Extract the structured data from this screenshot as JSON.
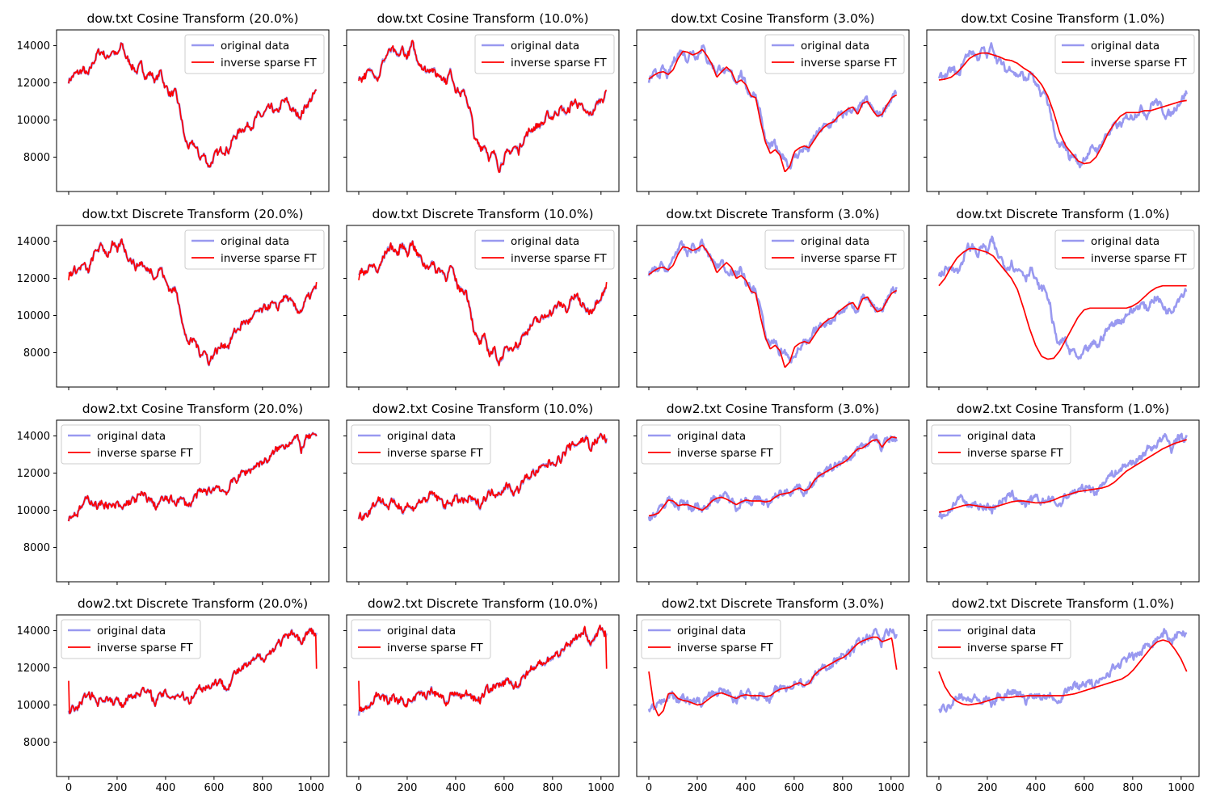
{
  "figure": {
    "colors": {
      "original": "#9999f0",
      "inverse": "#ff0000"
    },
    "x_ticks": [
      0,
      200,
      400,
      600,
      800,
      1000
    ],
    "y_ticks": [
      8000,
      10000,
      12000,
      14000
    ]
  },
  "chart_data": [
    {
      "type": "line",
      "title": "dow.txt Cosine Transform (20.0%)",
      "dataset": "dow.txt",
      "transform": "cosine",
      "keep_fraction": 0.2,
      "xlim": [
        -50,
        1074
      ],
      "ylim": [
        6150,
        14850
      ],
      "legend": "upper right",
      "series": [
        {
          "name": "original data"
        },
        {
          "name": "inverse sparse FT"
        }
      ]
    },
    {
      "type": "line",
      "title": "dow.txt Cosine Transform (10.0%)",
      "dataset": "dow.txt",
      "transform": "cosine",
      "keep_fraction": 0.1,
      "xlim": [
        -50,
        1074
      ],
      "ylim": [
        6150,
        14850
      ],
      "legend": "upper right",
      "series": [
        {
          "name": "original data"
        },
        {
          "name": "inverse sparse FT"
        }
      ]
    },
    {
      "type": "line",
      "title": "dow.txt Cosine Transform (3.0%)",
      "dataset": "dow.txt",
      "transform": "cosine",
      "keep_fraction": 0.03,
      "xlim": [
        -50,
        1074
      ],
      "ylim": [
        6150,
        14850
      ],
      "legend": "upper right",
      "series": [
        {
          "name": "original data"
        },
        {
          "name": "inverse sparse FT"
        }
      ]
    },
    {
      "type": "line",
      "title": "dow.txt Cosine Transform (1.0%)",
      "dataset": "dow.txt",
      "transform": "cosine",
      "keep_fraction": 0.01,
      "xlim": [
        -50,
        1074
      ],
      "ylim": [
        6150,
        14850
      ],
      "legend": "upper right",
      "series": [
        {
          "name": "original data"
        },
        {
          "name": "inverse sparse FT"
        }
      ]
    },
    {
      "type": "line",
      "title": "dow.txt Discrete Transform (20.0%)",
      "dataset": "dow.txt",
      "transform": "discrete",
      "keep_fraction": 0.2,
      "xlim": [
        -50,
        1074
      ],
      "ylim": [
        6150,
        14850
      ],
      "legend": "upper right",
      "series": [
        {
          "name": "original data"
        },
        {
          "name": "inverse sparse FT"
        }
      ]
    },
    {
      "type": "line",
      "title": "dow.txt Discrete Transform (10.0%)",
      "dataset": "dow.txt",
      "transform": "discrete",
      "keep_fraction": 0.1,
      "xlim": [
        -50,
        1074
      ],
      "ylim": [
        6150,
        14850
      ],
      "legend": "upper right",
      "series": [
        {
          "name": "original data"
        },
        {
          "name": "inverse sparse FT"
        }
      ]
    },
    {
      "type": "line",
      "title": "dow.txt Discrete Transform (3.0%)",
      "dataset": "dow.txt",
      "transform": "discrete",
      "keep_fraction": 0.03,
      "xlim": [
        -50,
        1074
      ],
      "ylim": [
        6150,
        14850
      ],
      "legend": "upper right",
      "series": [
        {
          "name": "original data"
        },
        {
          "name": "inverse sparse FT"
        }
      ]
    },
    {
      "type": "line",
      "title": "dow.txt Discrete Transform (1.0%)",
      "dataset": "dow.txt",
      "transform": "discrete",
      "keep_fraction": 0.01,
      "xlim": [
        -50,
        1074
      ],
      "ylim": [
        6150,
        14850
      ],
      "legend": "upper right",
      "series": [
        {
          "name": "original data"
        },
        {
          "name": "inverse sparse FT"
        }
      ]
    },
    {
      "type": "line",
      "title": "dow2.txt Cosine Transform (20.0%)",
      "dataset": "dow2.txt",
      "transform": "cosine",
      "keep_fraction": 0.2,
      "xlim": [
        -50,
        1074
      ],
      "ylim": [
        6150,
        14850
      ],
      "legend": "upper left",
      "series": [
        {
          "name": "original data"
        },
        {
          "name": "inverse sparse FT"
        }
      ]
    },
    {
      "type": "line",
      "title": "dow2.txt Cosine Transform (10.0%)",
      "dataset": "dow2.txt",
      "transform": "cosine",
      "keep_fraction": 0.1,
      "xlim": [
        -50,
        1074
      ],
      "ylim": [
        6150,
        14850
      ],
      "legend": "upper left",
      "series": [
        {
          "name": "original data"
        },
        {
          "name": "inverse sparse FT"
        }
      ]
    },
    {
      "type": "line",
      "title": "dow2.txt Cosine Transform (3.0%)",
      "dataset": "dow2.txt",
      "transform": "cosine",
      "keep_fraction": 0.03,
      "xlim": [
        -50,
        1074
      ],
      "ylim": [
        6150,
        14850
      ],
      "legend": "upper left",
      "series": [
        {
          "name": "original data"
        },
        {
          "name": "inverse sparse FT"
        }
      ]
    },
    {
      "type": "line",
      "title": "dow2.txt Cosine Transform (1.0%)",
      "dataset": "dow2.txt",
      "transform": "cosine",
      "keep_fraction": 0.01,
      "xlim": [
        -50,
        1074
      ],
      "ylim": [
        6150,
        14850
      ],
      "legend": "upper left",
      "series": [
        {
          "name": "original data"
        },
        {
          "name": "inverse sparse FT"
        }
      ]
    },
    {
      "type": "line",
      "title": "dow2.txt Discrete Transform (20.0%)",
      "dataset": "dow2.txt",
      "transform": "discrete",
      "keep_fraction": 0.2,
      "xlim": [
        -50,
        1074
      ],
      "ylim": [
        6150,
        14850
      ],
      "legend": "upper left",
      "series": [
        {
          "name": "original data"
        },
        {
          "name": "inverse sparse FT"
        }
      ]
    },
    {
      "type": "line",
      "title": "dow2.txt Discrete Transform (10.0%)",
      "dataset": "dow2.txt",
      "transform": "discrete",
      "keep_fraction": 0.1,
      "xlim": [
        -50,
        1074
      ],
      "ylim": [
        6150,
        14850
      ],
      "legend": "upper left",
      "series": [
        {
          "name": "original data"
        },
        {
          "name": "inverse sparse FT"
        }
      ]
    },
    {
      "type": "line",
      "title": "dow2.txt Discrete Transform (3.0%)",
      "dataset": "dow2.txt",
      "transform": "discrete",
      "keep_fraction": 0.03,
      "xlim": [
        -50,
        1074
      ],
      "ylim": [
        6150,
        14850
      ],
      "legend": "upper left",
      "series": [
        {
          "name": "original data"
        },
        {
          "name": "inverse sparse FT"
        }
      ]
    },
    {
      "type": "line",
      "title": "dow2.txt Discrete Transform (1.0%)",
      "dataset": "dow2.txt",
      "transform": "discrete",
      "keep_fraction": 0.01,
      "xlim": [
        -50,
        1074
      ],
      "ylim": [
        6150,
        14850
      ],
      "legend": "upper left",
      "series": [
        {
          "name": "original data"
        },
        {
          "name": "inverse sparse FT"
        }
      ]
    }
  ],
  "series_values": {
    "dow.txt": {
      "x": [
        0,
        20,
        40,
        60,
        80,
        100,
        120,
        140,
        160,
        180,
        200,
        220,
        240,
        260,
        280,
        300,
        320,
        340,
        360,
        380,
        400,
        420,
        440,
        460,
        480,
        500,
        520,
        540,
        560,
        580,
        600,
        620,
        640,
        660,
        680,
        700,
        720,
        740,
        760,
        780,
        800,
        820,
        840,
        860,
        880,
        900,
        920,
        940,
        960,
        980,
        1000,
        1020
      ],
      "original": [
        12150,
        12400,
        12500,
        12700,
        12300,
        13100,
        13600,
        13700,
        13300,
        13800,
        13400,
        14050,
        13300,
        13000,
        12600,
        12900,
        12400,
        12500,
        12100,
        12600,
        11800,
        11400,
        11400,
        10500,
        8900,
        8500,
        8700,
        8000,
        8100,
        7500,
        8000,
        8200,
        8500,
        8400,
        9000,
        9300,
        9600,
        9700,
        9800,
        10200,
        10200,
        10500,
        10600,
        10300,
        10900,
        11000,
        10600,
        10300,
        10300,
        10800,
        11100,
        11450
      ],
      "smooth_3": [
        12200,
        12400,
        12550,
        12600,
        12450,
        12700,
        13300,
        13700,
        13650,
        13500,
        13600,
        13800,
        13450,
        13000,
        12300,
        12600,
        12850,
        12600,
        12000,
        12150,
        11900,
        11300,
        11200,
        9900,
        8800,
        8200,
        8400,
        8100,
        7200,
        7500,
        8300,
        8500,
        8600,
        8500,
        8900,
        9300,
        9600,
        9800,
        9900,
        10200,
        10400,
        10600,
        10700,
        10300,
        10900,
        11000,
        10550,
        10200,
        10300,
        10800,
        11200,
        11350
      ],
      "smooth_1": [
        12150,
        12200,
        12300,
        12550,
        12900,
        13300,
        13500,
        13600,
        13600,
        13500,
        13400,
        13250,
        13200,
        13050,
        12800,
        12600,
        12300,
        11900,
        11300,
        10400,
        9300,
        8600,
        8200,
        7800,
        7650,
        7700,
        8000,
        8600,
        9300,
        9800,
        10200,
        10400,
        10400,
        10400,
        10500,
        10500,
        10600,
        10700,
        10800,
        10900,
        11000,
        11050
      ],
      "smooth_1_dft": [
        11600,
        12000,
        12600,
        13100,
        13400,
        13600,
        13600,
        13500,
        13400,
        13200,
        12800,
        12400,
        12000,
        11400,
        10400,
        9300,
        8400,
        7800,
        7650,
        7700,
        8100,
        8700,
        9300,
        9900,
        10300,
        10400,
        10400,
        10400,
        10400,
        10400,
        10400,
        10400,
        10500,
        10700,
        11000,
        11300,
        11500,
        11600,
        11600,
        11600,
        11600,
        11600
      ]
    },
    "dow2.txt": {
      "x": [
        0,
        20,
        40,
        60,
        80,
        100,
        120,
        140,
        160,
        180,
        200,
        220,
        240,
        260,
        280,
        300,
        320,
        340,
        360,
        380,
        400,
        420,
        440,
        460,
        480,
        500,
        520,
        540,
        560,
        580,
        600,
        620,
        640,
        660,
        680,
        700,
        720,
        740,
        760,
        780,
        800,
        820,
        840,
        860,
        880,
        900,
        920,
        940,
        960,
        980,
        1000,
        1020
      ],
      "original": [
        9600,
        9800,
        9900,
        10300,
        10600,
        10500,
        10200,
        10400,
        10300,
        10100,
        10300,
        10000,
        10400,
        10500,
        10600,
        10800,
        10700,
        10500,
        10200,
        10500,
        10600,
        10500,
        10500,
        10600,
        10400,
        10300,
        10700,
        10900,
        11000,
        11000,
        11200,
        11300,
        11000,
        11100,
        11600,
        11800,
        12000,
        12100,
        12300,
        12500,
        12600,
        12700,
        12900,
        13300,
        13400,
        13600,
        13800,
        13900,
        13300,
        13800,
        14000,
        13800
      ],
      "smooth_3": [
        9700,
        9750,
        9850,
        10200,
        10550,
        10500,
        10250,
        10300,
        10300,
        10200,
        10100,
        10000,
        10200,
        10500,
        10650,
        10700,
        10600,
        10450,
        10300,
        10450,
        10550,
        10500,
        10500,
        10500,
        10450,
        10500,
        10700,
        10850,
        10900,
        10950,
        11100,
        11200,
        11050,
        11150,
        11600,
        11850,
        12000,
        12150,
        12300,
        12450,
        12550,
        12750,
        13050,
        13300,
        13350,
        13550,
        13750,
        13800,
        13400,
        13750,
        13950,
        13900
      ],
      "smooth_1": [
        9900,
        9950,
        10050,
        10150,
        10250,
        10300,
        10250,
        10200,
        10150,
        10150,
        10250,
        10350,
        10450,
        10500,
        10500,
        10450,
        10400,
        10400,
        10450,
        10550,
        10700,
        10800,
        10900,
        11000,
        11050,
        11100,
        11150,
        11200,
        11300,
        11500,
        11800,
        12100,
        12300,
        12500,
        12700,
        12900,
        13100,
        13300,
        13450,
        13600,
        13700,
        13800
      ],
      "smooth_1_dft": [
        11800,
        11000,
        10500,
        10200,
        10050,
        10000,
        10050,
        10100,
        10200,
        10300,
        10400,
        10400,
        10400,
        10450,
        10450,
        10500,
        10500,
        10500,
        10500,
        10500,
        10500,
        10500,
        10550,
        10600,
        10700,
        10800,
        10900,
        11000,
        11100,
        11200,
        11300,
        11400,
        11600,
        11900,
        12300,
        12700,
        13100,
        13400,
        13500,
        13400,
        13000,
        12500,
        11800
      ],
      "smooth_3_dft": [
        11800,
        10000,
        9400,
        9700,
        10600,
        10650,
        10350,
        10250,
        10200,
        10100,
        10000,
        10050,
        10250,
        10450,
        10600,
        10650,
        10550,
        10450,
        10350,
        10500,
        10550,
        10500,
        10500,
        10500,
        10450,
        10500,
        10700,
        10850,
        10900,
        10950,
        11100,
        11200,
        11050,
        11150,
        11600,
        11850,
        12000,
        12150,
        12300,
        12450,
        12550,
        12750,
        13050,
        13300,
        13450,
        13550,
        13650,
        13650,
        13400,
        13500,
        13600,
        11900
      ]
    }
  }
}
